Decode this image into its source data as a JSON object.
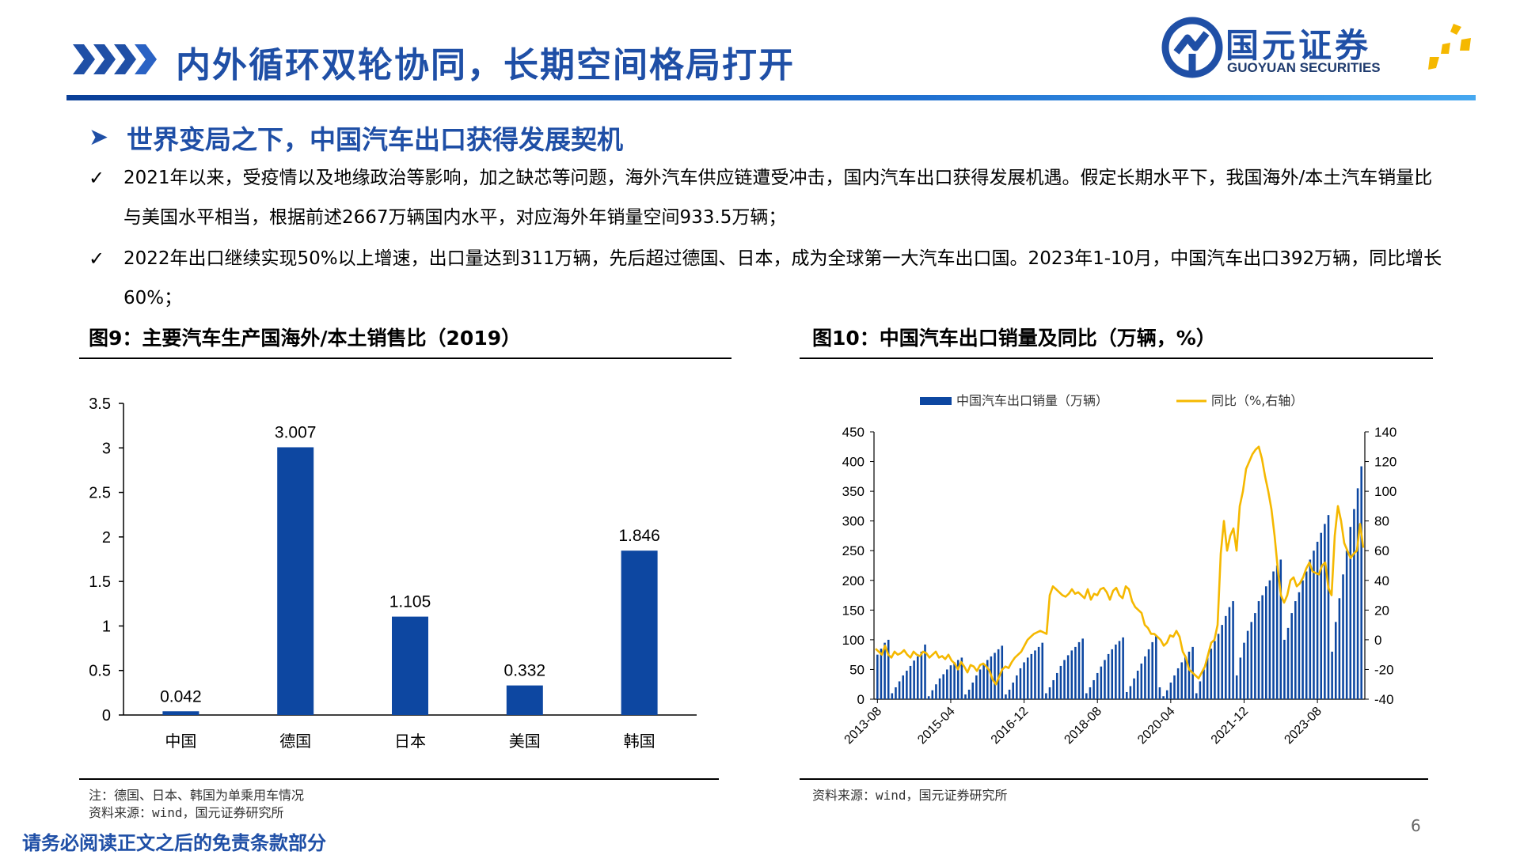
{
  "header": {
    "title": "内外循环双轮协同，长期空间格局打开",
    "logo_cn": "国元证券",
    "logo_en": "GUOYUAN SECURITIES"
  },
  "section": {
    "title": "世界变局之下，中国汽车出口获得发展契机",
    "bullets": [
      "2021年以来，受疫情以及地缘政治等影响，加之缺芯等问题，海外汽车供应链遭受冲击，国内汽车出口获得发展机遇。假定长期水平下，我国海外/本土汽车销量比与美国水平相当，根据前述2667万辆国内水平，对应海外年销量空间933.5万辆；",
      "2022年出口继续实现50%以上增速，出口量达到311万辆，先后超过德国、日本，成为全球第一大汽车出口国。2023年1-10月，中国汽车出口392万辆，同比增长60%；"
    ]
  },
  "fig9": {
    "title": "图9：主要汽车生产国海外/本土销售比（2019）",
    "note1": "注：德国、日本、韩国为单乘用车情况",
    "note2": "资料来源：wind，国元证券研究所"
  },
  "fig10": {
    "title": "图10：中国汽车出口销量及同比（万辆，%）",
    "note": "资料来源：wind，国元证券研究所"
  },
  "footer": {
    "disclaimer": "请务必阅读正文之后的免责条款部分",
    "page_number": "6"
  },
  "colors": {
    "brand_blue": "#1f4fa6",
    "bar_blue": "#0d47a1",
    "line_gold": "#f5b800"
  },
  "chart_data": [
    {
      "type": "bar",
      "categories": [
        "中国",
        "德国",
        "日本",
        "美国",
        "韩国"
      ],
      "values": [
        0.042,
        3.007,
        1.105,
        0.332,
        1.846
      ],
      "data_labels": [
        "0.042",
        "3.007",
        "1.105",
        "0.332",
        "1.846"
      ],
      "ylim": [
        0,
        3.5
      ],
      "yticks": [
        "0",
        "0.5",
        "1",
        "1.5",
        "2",
        "2.5",
        "3",
        "3.5"
      ],
      "grid": false
    },
    {
      "type": "bar+line",
      "x_start": "2013-08",
      "x_ticks": [
        "2013-08",
        "2015-04",
        "2016-12",
        "2018-08",
        "2020-04",
        "2021-12",
        "2023-08"
      ],
      "legend": [
        "中国汽车出口销量（万辆）",
        "同比（%,右轴）"
      ],
      "legend_position": "top",
      "y_left": {
        "lim": [
          0,
          450
        ],
        "ticks": [
          "0",
          "50",
          "100",
          "150",
          "200",
          "250",
          "300",
          "350",
          "400",
          "450"
        ]
      },
      "y_right": {
        "lim": [
          -40,
          140
        ],
        "ticks": [
          "-40",
          "-20",
          "0",
          "20",
          "40",
          "60",
          "80",
          "100",
          "120",
          "140"
        ]
      },
      "series": [
        {
          "name": "中国汽车出口销量（万辆）",
          "kind": "bar",
          "values": [
            75,
            85,
            95,
            100,
            10,
            20,
            30,
            40,
            48,
            56,
            65,
            72,
            80,
            92,
            5,
            15,
            25,
            35,
            42,
            50,
            57,
            62,
            66,
            70,
            8,
            16,
            28,
            40,
            50,
            58,
            66,
            72,
            78,
            84,
            90,
            8,
            16,
            28,
            40,
            52,
            62,
            70,
            76,
            82,
            88,
            95,
            10,
            20,
            32,
            44,
            56,
            66,
            74,
            82,
            88,
            96,
            102,
            10,
            20,
            32,
            44,
            55,
            66,
            76,
            84,
            92,
            98,
            104,
            12,
            22,
            35,
            48,
            60,
            72,
            84,
            96,
            106,
            20,
            5,
            15,
            28,
            40,
            52,
            62,
            72,
            80,
            88,
            10,
            30,
            50,
            70,
            85,
            98,
            110,
            125,
            140,
            155,
            165,
            40,
            70,
            95,
            115,
            130,
            145,
            165,
            175,
            190,
            200,
            215,
            225,
            235,
            100,
            120,
            145,
            165,
            180,
            200,
            215,
            235,
            250,
            265,
            280,
            295,
            310,
            80,
            130,
            170,
            210,
            250,
            290,
            320,
            355,
            392
          ]
        },
        {
          "name": "同比（%,右轴）",
          "kind": "line",
          "values": [
            -6,
            -8,
            -10,
            -4,
            -10,
            -12,
            -8,
            -10,
            -9,
            -7,
            -10,
            -12,
            -8,
            -10,
            -11,
            -8,
            -9,
            -12,
            -10,
            -8,
            -12,
            -11,
            -13,
            -10,
            -14,
            -16,
            -20,
            -15,
            -18,
            -22,
            -17,
            -18,
            -21,
            -17,
            -16,
            -18,
            -21,
            -27,
            -30,
            -25,
            -20,
            -18,
            -19,
            -15,
            -12,
            -10,
            -8,
            -4,
            0,
            2,
            4,
            5,
            6,
            5,
            4,
            30,
            36,
            34,
            32,
            30,
            29,
            31,
            34,
            31,
            32,
            30,
            28,
            34,
            27,
            31,
            30,
            34,
            35,
            32,
            27,
            33,
            35,
            30,
            28,
            36,
            34,
            26,
            22,
            20,
            18,
            10,
            8,
            4,
            4,
            2,
            0,
            -4,
            -2,
            3,
            2,
            6,
            2,
            -8,
            -12,
            -20,
            -22,
            -24,
            -26,
            -22,
            -18,
            -10,
            -2,
            0,
            10,
            58,
            80,
            60,
            70,
            75,
            60,
            90,
            100,
            115,
            120,
            125,
            128,
            130,
            122,
            110,
            100,
            88,
            70,
            48,
            30,
            25,
            30,
            40,
            42,
            36,
            38,
            42,
            48,
            52,
            46,
            45,
            44,
            50,
            52,
            35,
            30,
            70,
            90,
            80,
            65,
            60,
            55,
            58,
            60,
            78,
            62
          ]
        }
      ]
    }
  ]
}
